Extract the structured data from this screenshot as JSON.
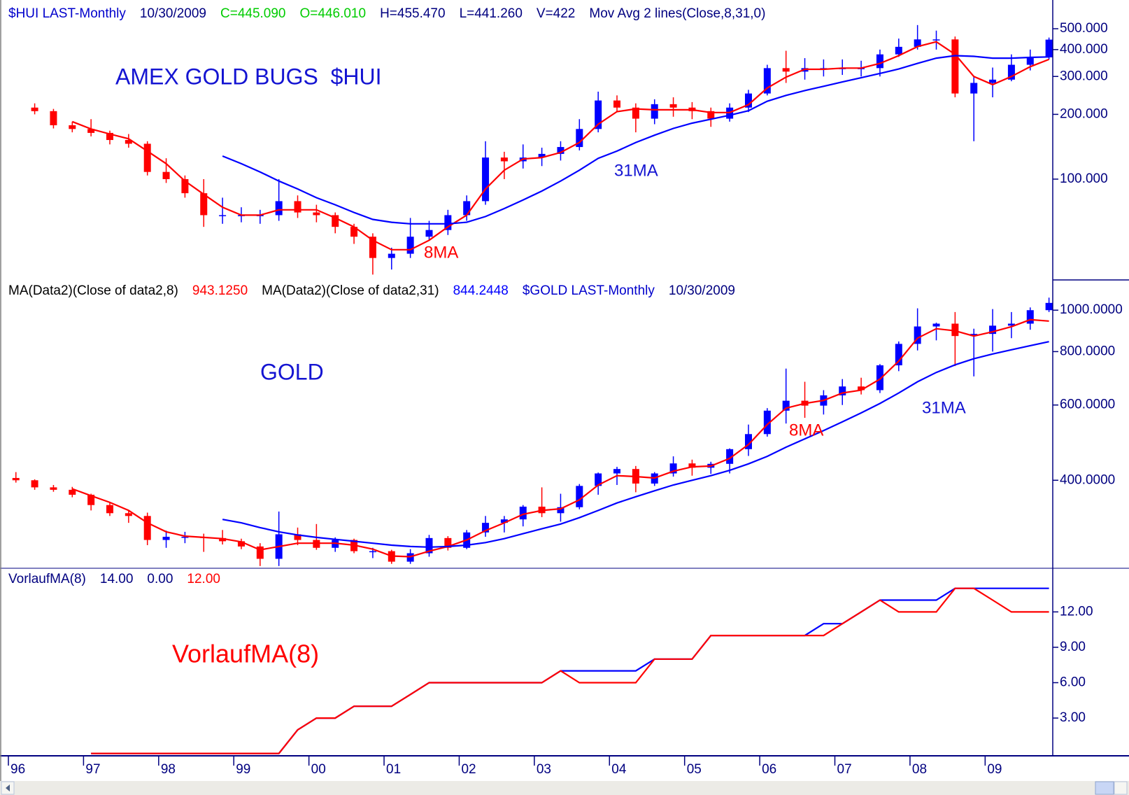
{
  "chart_data": [
    {
      "type": "candlestick",
      "log": true,
      "header": [
        {
          "text": "$HUI LAST-Monthly",
          "color": "#0000cc"
        },
        {
          "text": "10/30/2009",
          "color": "#000080"
        },
        {
          "text": "C=445.090",
          "color": "#00cc00"
        },
        {
          "text": "O=446.010",
          "color": "#00cc00"
        },
        {
          "text": "H=455.470",
          "color": "#000080"
        },
        {
          "text": "L=441.260",
          "color": "#000080"
        },
        {
          "text": "V=422",
          "color": "#000080"
        },
        {
          "text": "Mov Avg 2 lines(Close,8,31,0)",
          "color": "#000080"
        }
      ],
      "annotations": [
        {
          "text": "AMEX GOLD BUGS  $HUI",
          "color": "#1414d2"
        },
        {
          "text": "31MA",
          "color": "#1414d2"
        },
        {
          "text": "8MA",
          "color": "#ff0000"
        }
      ],
      "up_color": "#0000ff",
      "down_color": "#ff0000",
      "x": [
        1996.1,
        1996.35,
        1996.6,
        1996.85,
        1997.1,
        1997.35,
        1997.6,
        1997.85,
        1998.1,
        1998.35,
        1998.6,
        1998.85,
        1999.1,
        1999.35,
        1999.6,
        1999.85,
        2000.1,
        2000.35,
        2000.6,
        2000.85,
        2001.1,
        2001.35,
        2001.6,
        2001.85,
        2002.1,
        2002.35,
        2002.6,
        2002.85,
        2003.1,
        2003.35,
        2003.6,
        2003.85,
        2004.1,
        2004.35,
        2004.6,
        2004.85,
        2005.1,
        2005.35,
        2005.6,
        2005.85,
        2006.1,
        2006.35,
        2006.6,
        2006.85,
        2007.1,
        2007.35,
        2007.6,
        2007.85,
        2008.1,
        2008.35,
        2008.6,
        2008.85,
        2009.1,
        2009.35,
        2009.6,
        2009.85
      ],
      "open": [
        null,
        215,
        207,
        178,
        171,
        164,
        152,
        146,
        108,
        100,
        86,
        68,
        68,
        68,
        68,
        79,
        70,
        68,
        60,
        54,
        43,
        45,
        54,
        58,
        68,
        79,
        126,
        121,
        126,
        131,
        141,
        171,
        232,
        215,
        191,
        223,
        215,
        207,
        191,
        215,
        250,
        328,
        316,
        328,
        328,
        328,
        328,
        380,
        412,
        446,
        446,
        250,
        280,
        290,
        340,
        368
      ],
      "high": [
        null,
        225,
        212,
        185,
        190,
        168,
        162,
        150,
        125,
        104,
        100,
        82,
        74,
        72,
        100,
        84,
        76,
        70,
        62,
        56,
        48,
        66,
        64,
        72,
        84,
        150,
        134,
        145,
        140,
        150,
        190,
        255,
        245,
        225,
        235,
        240,
        228,
        215,
        225,
        260,
        340,
        395,
        365,
        360,
        360,
        355,
        400,
        450,
        520,
        490,
        460,
        300,
        330,
        380,
        400,
        455
      ],
      "low": [
        null,
        200,
        172,
        165,
        158,
        145,
        140,
        104,
        96,
        82,
        60,
        62,
        63,
        62,
        64,
        66,
        63,
        56,
        50,
        36,
        38,
        43,
        52,
        55,
        64,
        76,
        100,
        112,
        115,
        122,
        136,
        165,
        205,
        165,
        180,
        195,
        190,
        175,
        185,
        205,
        245,
        280,
        290,
        300,
        305,
        300,
        300,
        370,
        400,
        400,
        240,
        150,
        240,
        285,
        320,
        360
      ],
      "close": [
        null,
        207,
        178,
        171,
        164,
        152,
        146,
        108,
        100,
        86,
        68,
        68,
        68,
        68,
        79,
        70,
        68,
        60,
        54,
        43,
        45,
        54,
        58,
        68,
        79,
        126,
        121,
        126,
        131,
        141,
        171,
        232,
        215,
        191,
        223,
        215,
        207,
        191,
        215,
        250,
        328,
        316,
        328,
        328,
        328,
        328,
        380,
        412,
        446,
        446,
        250,
        280,
        290,
        340,
        368,
        445
      ],
      "series": [
        {
          "name": "8MA",
          "color": "#ff0000",
          "values": [
            null,
            null,
            null,
            185,
            171,
            162,
            154,
            135,
            118,
            98,
            85,
            74,
            68,
            68,
            72,
            72,
            72,
            66,
            60,
            52,
            47,
            47,
            52,
            60,
            68,
            90,
            110,
            124,
            126,
            133,
            148,
            180,
            206,
            212,
            210,
            210,
            210,
            204,
            204,
            222,
            265,
            298,
            324,
            324,
            328,
            328,
            345,
            375,
            413,
            435,
            380,
            300,
            275,
            300,
            333,
            360
          ]
        },
        {
          "name": "31MA",
          "color": "#0000ff",
          "values": [
            null,
            null,
            null,
            null,
            null,
            null,
            null,
            null,
            null,
            null,
            null,
            128,
            118,
            108,
            98,
            90,
            82,
            76,
            70,
            65,
            63,
            62,
            62,
            62,
            63,
            67,
            73,
            80,
            88,
            98,
            110,
            125,
            135,
            148,
            160,
            172,
            182,
            190,
            198,
            208,
            230,
            245,
            258,
            270,
            283,
            296,
            310,
            325,
            345,
            365,
            375,
            372,
            365,
            365,
            368,
            370
          ]
        }
      ],
      "xlim": [
        1996,
        2009.9
      ],
      "ylim": [
        34,
        680
      ],
      "yticks": [
        {
          "value": 100,
          "label": "100.000"
        },
        {
          "value": 200,
          "label": "200.000"
        },
        {
          "value": 300,
          "label": "300.000"
        },
        {
          "value": 400,
          "label": "400.000"
        },
        {
          "value": 500,
          "label": "500.000"
        }
      ]
    },
    {
      "type": "candlestick",
      "log": true,
      "header": [
        {
          "text": "MA(Data2)(Close of data2,8)",
          "color": "#000000"
        },
        {
          "text": "943.1250",
          "color": "#ff0000"
        },
        {
          "text": "MA(Data2)(Close of data2,31)",
          "color": "#000000"
        },
        {
          "text": "844.2448",
          "color": "#0000ff"
        },
        {
          "text": "$GOLD LAST-Monthly",
          "color": "#0000cc"
        },
        {
          "text": "10/30/2009",
          "color": "#000080"
        }
      ],
      "annotations": [
        {
          "text": "GOLD",
          "color": "#1414d2"
        },
        {
          "text": "8MA",
          "color": "#ff0000"
        },
        {
          "text": "31MA",
          "color": "#1414d2"
        }
      ],
      "up_color": "#0000ff",
      "down_color": "#ff0000",
      "x": [
        1996.1,
        1996.35,
        1996.6,
        1996.85,
        1997.1,
        1997.35,
        1997.6,
        1997.85,
        1998.1,
        1998.35,
        1998.6,
        1998.85,
        1999.1,
        1999.35,
        1999.6,
        1999.85,
        2000.1,
        2000.35,
        2000.6,
        2000.85,
        2001.1,
        2001.35,
        2001.6,
        2001.85,
        2002.1,
        2002.35,
        2002.6,
        2002.85,
        2003.1,
        2003.35,
        2003.6,
        2003.85,
        2004.1,
        2004.35,
        2004.6,
        2004.85,
        2005.1,
        2005.35,
        2005.6,
        2005.85,
        2006.1,
        2006.35,
        2006.6,
        2006.85,
        2007.1,
        2007.35,
        2007.6,
        2007.85,
        2008.1,
        2008.35,
        2008.6,
        2008.85,
        2009.1,
        2009.35,
        2009.6,
        2009.85
      ],
      "open": [
        405,
        400,
        385,
        380,
        370,
        350,
        335,
        330,
        290,
        295,
        295,
        293,
        288,
        280,
        262,
        299,
        290,
        278,
        290,
        273,
        273,
        258,
        270,
        293,
        278,
        302,
        318,
        324,
        347,
        335,
        346,
        388,
        415,
        425,
        393,
        415,
        438,
        428,
        437,
        473,
        513,
        582,
        614,
        598,
        632,
        663,
        650,
        743,
        834,
        916,
        930,
        870,
        880,
        920,
        930,
        1000
      ],
      "high": [
        418,
        402,
        390,
        386,
        372,
        356,
        340,
        336,
        305,
        303,
        300,
        306,
        292,
        285,
        338,
        310,
        316,
        294,
        292,
        278,
        275,
        276,
        298,
        296,
        306,
        330,
        330,
        350,
        385,
        372,
        392,
        417,
        430,
        432,
        418,
        455,
        447,
        442,
        475,
        540,
        590,
        730,
        680,
        650,
        690,
        695,
        748,
        845,
        1010,
        935,
        990,
        905,
        1006,
        990,
        1015,
        1070
      ],
      "low": [
        395,
        380,
        376,
        365,
        340,
        330,
        318,
        282,
        278,
        285,
        272,
        283,
        276,
        252,
        252,
        282,
        275,
        272,
        270,
        263,
        255,
        255,
        265,
        274,
        276,
        295,
        302,
        312,
        328,
        320,
        342,
        370,
        390,
        375,
        388,
        408,
        410,
        414,
        415,
        456,
        506,
        543,
        560,
        570,
        600,
        635,
        640,
        720,
        805,
        850,
        740,
        700,
        800,
        860,
        900,
        990
      ],
      "close": [
        400,
        385,
        380,
        370,
        350,
        335,
        330,
        290,
        295,
        295,
        293,
        288,
        280,
        262,
        299,
        290,
        278,
        290,
        273,
        273,
        258,
        270,
        293,
        278,
        302,
        318,
        324,
        347,
        335,
        346,
        388,
        415,
        425,
        393,
        415,
        438,
        428,
        437,
        473,
        513,
        582,
        614,
        598,
        632,
        663,
        650,
        743,
        834,
        916,
        930,
        870,
        880,
        920,
        930,
        1000,
        1040
      ],
      "series": [
        {
          "name": "8MA",
          "color": "#ff0000",
          "values": [
            null,
            null,
            null,
            382,
            368,
            355,
            340,
            318,
            303,
            296,
            294,
            292,
            287,
            275,
            280,
            285,
            285,
            285,
            282,
            276,
            266,
            265,
            273,
            280,
            290,
            305,
            318,
            333,
            340,
            343,
            360,
            390,
            410,
            408,
            405,
            420,
            430,
            432,
            450,
            485,
            540,
            590,
            605,
            615,
            640,
            650,
            690,
            760,
            860,
            905,
            895,
            870,
            890,
            915,
            950,
            943
          ]
        },
        {
          "name": "31MA",
          "color": "#0000ff",
          "values": [
            null,
            null,
            null,
            null,
            null,
            null,
            null,
            null,
            null,
            null,
            null,
            324,
            318,
            310,
            303,
            298,
            294,
            291,
            288,
            285,
            282,
            280,
            279,
            280,
            282,
            286,
            292,
            300,
            308,
            316,
            327,
            340,
            354,
            366,
            378,
            390,
            400,
            410,
            422,
            437,
            455,
            478,
            500,
            523,
            548,
            575,
            605,
            640,
            680,
            715,
            745,
            770,
            790,
            808,
            826,
            844
          ]
        }
      ],
      "xlim": [
        1996,
        2009.9
      ],
      "ylim": [
        249,
        1177
      ],
      "yticks": [
        {
          "value": 400,
          "label": "400.0000"
        },
        {
          "value": 600,
          "label": "600.0000"
        },
        {
          "value": 800,
          "label": "800.0000"
        },
        {
          "value": 1000,
          "label": "1000.0000"
        }
      ]
    },
    {
      "type": "line",
      "header": [
        {
          "text": "VorlaufMA(8)",
          "color": "#000080"
        },
        {
          "text": "14.00",
          "color": "#000080"
        },
        {
          "text": "0.00",
          "color": "#000080"
        },
        {
          "text": "12.00",
          "color": "#ff0000"
        }
      ],
      "annotations": [
        {
          "text": "VorlaufMA(8)",
          "color": "#ff0000"
        }
      ],
      "x": [
        1996.1,
        1996.35,
        1996.6,
        1996.85,
        1997.1,
        1997.35,
        1997.6,
        1997.85,
        1998.1,
        1998.35,
        1998.6,
        1998.85,
        1999.1,
        1999.35,
        1999.6,
        1999.85,
        2000.1,
        2000.35,
        2000.6,
        2000.85,
        2001.1,
        2001.35,
        2001.6,
        2001.85,
        2002.1,
        2002.35,
        2002.6,
        2002.85,
        2003.1,
        2003.35,
        2003.6,
        2003.85,
        2004.1,
        2004.35,
        2004.6,
        2004.85,
        2005.1,
        2005.35,
        2005.6,
        2005.85,
        2006.1,
        2006.35,
        2006.6,
        2006.85,
        2007.1,
        2007.35,
        2007.6,
        2007.85,
        2008.1,
        2008.35,
        2008.6,
        2008.85,
        2009.1,
        2009.35,
        2009.6,
        2009.85
      ],
      "series": [
        {
          "color": "#0000ff",
          "values": [
            null,
            null,
            null,
            null,
            0,
            0,
            0,
            0,
            0,
            0,
            0,
            0,
            0,
            0,
            0,
            2,
            3,
            3,
            4,
            4,
            4,
            5,
            6,
            6,
            6,
            6,
            6,
            6,
            6,
            7,
            7,
            7,
            7,
            7,
            8,
            8,
            8,
            10,
            10,
            10,
            10,
            10,
            10,
            11,
            11,
            12,
            13,
            13,
            13,
            13,
            14,
            14,
            14,
            14,
            14,
            14
          ]
        },
        {
          "color": "#ff0000",
          "values": [
            null,
            null,
            null,
            null,
            0,
            0,
            0,
            0,
            0,
            0,
            0,
            0,
            0,
            0,
            0,
            2,
            3,
            3,
            4,
            4,
            4,
            5,
            6,
            6,
            6,
            6,
            6,
            6,
            6,
            7,
            6,
            6,
            6,
            6,
            8,
            8,
            8,
            10,
            10,
            10,
            10,
            10,
            10,
            10,
            11,
            12,
            13,
            12,
            12,
            12,
            14,
            14,
            13,
            12,
            12,
            12
          ]
        }
      ],
      "xlim": [
        1996,
        2009.9
      ],
      "ylim": [
        -0.2,
        15.7
      ],
      "yticks": [
        {
          "value": 3,
          "label": "3.00"
        },
        {
          "value": 6,
          "label": "6.00"
        },
        {
          "value": 9,
          "label": "9.00"
        },
        {
          "value": 12,
          "label": "12.00"
        }
      ],
      "xticks": [
        {
          "value": 1996,
          "label": "96"
        },
        {
          "value": 1997,
          "label": "97"
        },
        {
          "value": 1998,
          "label": "98"
        },
        {
          "value": 1999,
          "label": "99"
        },
        {
          "value": 2000,
          "label": "00"
        },
        {
          "value": 2001,
          "label": "01"
        },
        {
          "value": 2002,
          "label": "02"
        },
        {
          "value": 2003,
          "label": "03"
        },
        {
          "value": 2004,
          "label": "04"
        },
        {
          "value": 2005,
          "label": "05"
        },
        {
          "value": 2006,
          "label": "06"
        },
        {
          "value": 2007,
          "label": "07"
        },
        {
          "value": 2008,
          "label": "08"
        },
        {
          "value": 2009,
          "label": "09"
        }
      ]
    }
  ]
}
